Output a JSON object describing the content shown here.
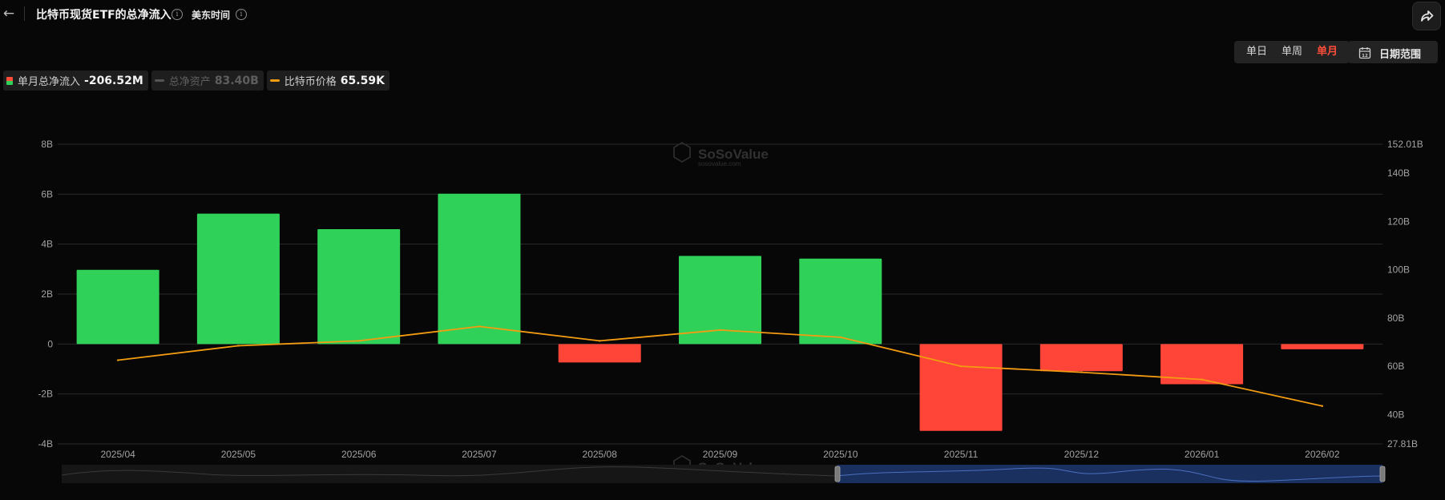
{
  "header": {
    "title": "比特币现货ETF的总净流入",
    "timezone": "美东时间"
  },
  "controls": {
    "periods": [
      "单日",
      "单周",
      "单月"
    ],
    "active_period": "单月",
    "date_range_label": "日期范围"
  },
  "legend": [
    {
      "name": "单月总净流入",
      "value": "-206.52M",
      "active": true
    },
    {
      "name": "总净资产",
      "value": "83.40B",
      "active": false
    },
    {
      "name": "比特币价格",
      "value": "65.59K",
      "active": true
    }
  ],
  "colors": {
    "positive": "#30d158",
    "negative": "#ff4438",
    "price_line": "#f39c12",
    "active_period": "#ff4d3a",
    "navigator_fill": "#1c3a78"
  },
  "chart_data": {
    "type": "bar",
    "categories": [
      "2025/04",
      "2025/05",
      "2025/06",
      "2025/07",
      "2025/08",
      "2025/09",
      "2025/10",
      "2025/11",
      "2025/12",
      "2026/01",
      "2026/02"
    ],
    "series": [
      {
        "name": "单月总净流入",
        "type": "bar",
        "axis": "left",
        "values": [
          2.97,
          5.22,
          4.6,
          6.02,
          -0.74,
          3.53,
          3.42,
          -3.48,
          -1.09,
          -1.61,
          -0.21
        ]
      },
      {
        "name": "比特币价格",
        "type": "line",
        "axis": "right",
        "values": [
          62.5,
          68.5,
          70.5,
          76.5,
          70.5,
          75.0,
          72.0,
          60.0,
          57.5,
          54.5,
          43.5
        ]
      }
    ],
    "y_left": {
      "ticks": [
        "8B",
        "6B",
        "4B",
        "2B",
        "0",
        "-2B",
        "-4B"
      ],
      "ylim": [
        -4,
        8
      ]
    },
    "y_right": {
      "ticks": [
        "152.01B",
        "140B",
        "120B",
        "100B",
        "80B",
        "60B",
        "40B",
        "27.81B"
      ],
      "ylim": [
        27.81,
        152.01
      ]
    },
    "grid": true,
    "legend_position": "top-left",
    "watermark": {
      "brand": "SoSoValue",
      "sub": "sosovalue.com"
    }
  }
}
